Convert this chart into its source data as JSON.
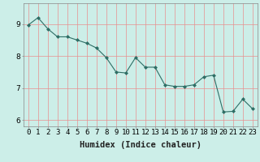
{
  "x": [
    0,
    1,
    2,
    3,
    4,
    5,
    6,
    7,
    8,
    9,
    10,
    11,
    12,
    13,
    14,
    15,
    16,
    17,
    18,
    19,
    20,
    21,
    22,
    23
  ],
  "y": [
    8.97,
    9.2,
    8.85,
    8.6,
    8.6,
    8.5,
    8.4,
    8.25,
    7.95,
    7.5,
    7.47,
    7.95,
    7.65,
    7.65,
    7.1,
    7.05,
    7.05,
    7.1,
    7.35,
    7.4,
    6.25,
    6.27,
    6.65,
    6.35
  ],
  "line_color": "#2e6e65",
  "marker": "D",
  "marker_size": 2.0,
  "bg_color": "#cceee8",
  "grid_color": "#e89090",
  "xlabel": "Humidex (Indice chaleur)",
  "ylim": [
    5.8,
    9.65
  ],
  "xlim": [
    -0.5,
    23.5
  ],
  "yticks": [
    6,
    7,
    8,
    9
  ],
  "xtick_labels": [
    "0",
    "1",
    "2",
    "3",
    "4",
    "5",
    "6",
    "7",
    "8",
    "9",
    "10",
    "11",
    "12",
    "13",
    "14",
    "15",
    "16",
    "17",
    "18",
    "19",
    "20",
    "21",
    "22",
    "23"
  ],
  "tick_font_size": 6.5,
  "xlabel_font_size": 7.5
}
